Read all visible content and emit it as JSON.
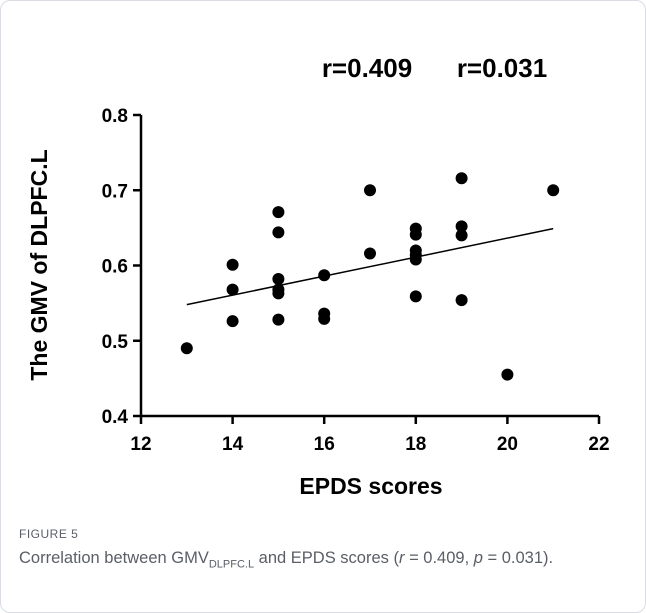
{
  "chart_data": {
    "type": "scatter",
    "annotation_r": "r=0.409",
    "annotation_p": "r=0.031",
    "xlabel": "EPDS scores",
    "ylabel": "The GMV of DLPFC.L",
    "xlim": [
      12,
      22
    ],
    "ylim": [
      0.4,
      0.8
    ],
    "x_ticks": [
      "12",
      "14",
      "16",
      "18",
      "20",
      "22"
    ],
    "y_ticks": [
      "0.4",
      "0.5",
      "0.6",
      "0.7",
      "0.8"
    ],
    "x_tick_values": [
      12,
      14,
      16,
      18,
      20,
      22
    ],
    "y_tick_values": [
      0.4,
      0.5,
      0.6,
      0.7,
      0.8
    ],
    "points": [
      {
        "x": 13,
        "y": 0.49
      },
      {
        "x": 14,
        "y": 0.601
      },
      {
        "x": 14,
        "y": 0.568
      },
      {
        "x": 14,
        "y": 0.526
      },
      {
        "x": 15,
        "y": 0.671
      },
      {
        "x": 15,
        "y": 0.644
      },
      {
        "x": 15,
        "y": 0.582
      },
      {
        "x": 15,
        "y": 0.568
      },
      {
        "x": 15,
        "y": 0.563
      },
      {
        "x": 15,
        "y": 0.528
      },
      {
        "x": 16,
        "y": 0.587
      },
      {
        "x": 16,
        "y": 0.536
      },
      {
        "x": 16,
        "y": 0.529
      },
      {
        "x": 17,
        "y": 0.7
      },
      {
        "x": 17,
        "y": 0.616
      },
      {
        "x": 18,
        "y": 0.649
      },
      {
        "x": 18,
        "y": 0.641
      },
      {
        "x": 18,
        "y": 0.62
      },
      {
        "x": 18,
        "y": 0.614
      },
      {
        "x": 18,
        "y": 0.608
      },
      {
        "x": 18,
        "y": 0.559
      },
      {
        "x": 19,
        "y": 0.716
      },
      {
        "x": 19,
        "y": 0.652
      },
      {
        "x": 19,
        "y": 0.64
      },
      {
        "x": 19,
        "y": 0.554
      },
      {
        "x": 20,
        "y": 0.455
      },
      {
        "x": 21,
        "y": 0.7
      }
    ],
    "fit_line": {
      "x": [
        13,
        21
      ],
      "y": [
        0.548,
        0.649
      ]
    },
    "grid": false,
    "marker_color": "#000000"
  },
  "caption": {
    "figure_label": "FIGURE 5",
    "text_before": "Correlation between GMV",
    "subscript": "DLPFC.L",
    "text_middle": " and EPDS scores (",
    "r_symbol": "r",
    "r_value": " = 0.409, ",
    "p_symbol": "p",
    "p_value": " = 0.031)."
  }
}
